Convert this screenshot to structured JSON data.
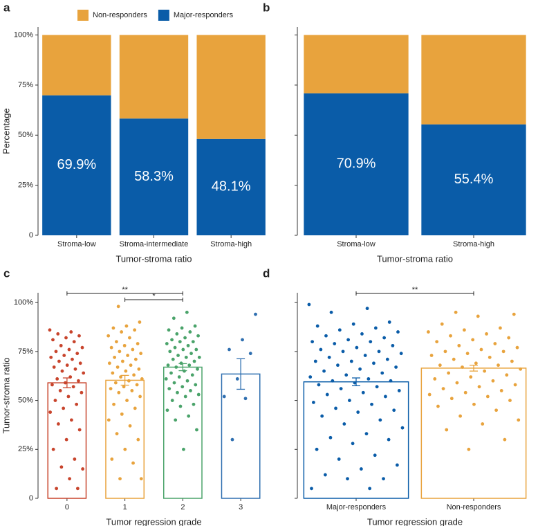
{
  "chart_data": [
    {
      "panel": "a",
      "type": "stacked_bar",
      "categories": [
        "Stroma-low",
        "Stroma-intermediate",
        "Stroma-high"
      ],
      "series": [
        {
          "name": "Major-responders",
          "color": "#0a5ca8",
          "values": [
            69.9,
            58.3,
            48.1
          ],
          "value_labels": [
            "69.9%",
            "58.3%",
            "48.1%"
          ]
        },
        {
          "name": "Non-responders",
          "color": "#e8a33d",
          "values": [
            30.1,
            41.7,
            51.9
          ]
        }
      ],
      "ylim": [
        0,
        104
      ],
      "yticks": [
        0,
        {
          "value": 25,
          "label": "25%"
        },
        {
          "value": 50,
          "label": "50%"
        },
        {
          "value": 75,
          "label": "75%"
        },
        {
          "value": 100,
          "label": "100%"
        }
      ],
      "tick_labels": true,
      "ylabel": "Percentage",
      "xlabel": "Tumor-stroma ratio",
      "legend": "top"
    },
    {
      "panel": "b",
      "type": "stacked_bar",
      "categories": [
        "Stroma-low",
        "Stroma-high"
      ],
      "series": [
        {
          "name": "Major-responders",
          "color": "#0a5ca8",
          "values": [
            70.9,
            55.4
          ],
          "value_labels": [
            "70.9%",
            "55.4%"
          ]
        },
        {
          "name": "Non-responders",
          "color": "#e8a33d",
          "values": [
            29.1,
            44.6
          ]
        }
      ],
      "ylim": [
        0,
        104
      ],
      "yticks": [
        0,
        25,
        50,
        75,
        100
      ],
      "tick_labels": false,
      "xlabel": "Tumor-stroma ratio"
    },
    {
      "panel": "c",
      "type": "bar_scatter",
      "categories": [
        "0",
        "1",
        "2",
        "3"
      ],
      "values": [
        59,
        60.3,
        67,
        63.5
      ],
      "errors": [
        2.5,
        2.5,
        1.8,
        7.8
      ],
      "colors": [
        "#c8442c",
        "#e8a33d",
        "#4aa36a",
        "#2f6fb0"
      ],
      "points": [
        [
          86,
          85,
          84,
          83,
          82,
          81,
          80,
          78,
          77,
          76,
          75,
          74,
          73,
          72,
          71,
          70,
          69,
          68,
          67,
          66,
          65,
          64,
          62,
          61,
          60,
          59,
          58,
          57,
          55,
          54,
          52,
          50,
          48,
          46,
          44,
          40,
          38,
          35,
          30,
          25,
          20,
          16,
          15,
          10,
          5,
          5
        ],
        [
          98,
          90,
          88,
          87,
          86,
          85,
          83,
          82,
          80,
          79,
          78,
          77,
          76,
          75,
          74,
          73,
          72,
          71,
          70,
          69,
          68,
          67,
          66,
          65,
          64,
          63,
          62,
          61,
          60,
          59,
          58,
          57,
          56,
          55,
          54,
          52,
          50,
          48,
          46,
          43,
          40,
          37,
          33,
          30,
          25,
          20,
          18,
          10,
          10
        ],
        [
          95,
          92,
          88,
          87,
          86,
          85,
          84,
          83,
          82,
          81,
          80,
          80,
          79,
          78,
          77,
          76,
          76,
          75,
          74,
          73,
          72,
          72,
          71,
          70,
          69,
          68,
          68,
          67,
          66,
          65,
          64,
          63,
          62,
          61,
          60,
          59,
          58,
          57,
          56,
          55,
          54,
          53,
          52,
          50,
          48,
          47,
          45,
          42,
          40,
          35,
          25
        ],
        [
          94,
          81,
          76,
          74,
          61,
          52,
          51,
          30
        ]
      ],
      "annotations": [
        {
          "from": 0,
          "to": 2,
          "label": "**"
        },
        {
          "from": 1,
          "to": 2,
          "label": "*"
        }
      ],
      "ylim": [
        0,
        105
      ],
      "yticks": [
        0,
        {
          "value": 25,
          "label": "25%"
        },
        {
          "value": 50,
          "label": "50%"
        },
        {
          "value": 75,
          "label": "75%"
        },
        {
          "value": 100,
          "label": "100%"
        }
      ],
      "tick_labels": true,
      "ylabel": "Tumor-stroma ratio",
      "xlabel": "Tumor regression grade"
    },
    {
      "panel": "d",
      "type": "bar_scatter",
      "categories": [
        "Major-responders",
        "Non-responders"
      ],
      "values": [
        59.5,
        66.5
      ],
      "errors": [
        2,
        1.5
      ],
      "colors": [
        "#0a5ca8",
        "#e8a33d"
      ],
      "points": [
        [
          99,
          97,
          95,
          90,
          89,
          88,
          87,
          86,
          85,
          84,
          83,
          82,
          81,
          80,
          80,
          79,
          78,
          77,
          76,
          75,
          75,
          74,
          73,
          72,
          71,
          70,
          70,
          69,
          68,
          67,
          66,
          65,
          64,
          63,
          62,
          61,
          60,
          60,
          59,
          58,
          57,
          56,
          55,
          54,
          53,
          52,
          50,
          49,
          48,
          46,
          45,
          44,
          42,
          40,
          38,
          36,
          33,
          31,
          30,
          28,
          25,
          22,
          20,
          17,
          15,
          12,
          10,
          10,
          5,
          5
        ],
        [
          95,
          94,
          93,
          89,
          87,
          86,
          85,
          84,
          83,
          82,
          81,
          80,
          79,
          78,
          77,
          76,
          75,
          75,
          74,
          73,
          72,
          71,
          70,
          69,
          68,
          68,
          67,
          66,
          65,
          64,
          63,
          62,
          61,
          60,
          59,
          58,
          57,
          56,
          55,
          54,
          53,
          52,
          51,
          50,
          48,
          47,
          45,
          42,
          40,
          38,
          35,
          30,
          25
        ]
      ],
      "annotations": [
        {
          "from": 0,
          "to": 1,
          "label": "**"
        }
      ],
      "ylim": [
        0,
        105
      ],
      "yticks": [
        0,
        25,
        50,
        75,
        100
      ],
      "tick_labels": false,
      "xlabel": "Tumor regression grade"
    }
  ]
}
